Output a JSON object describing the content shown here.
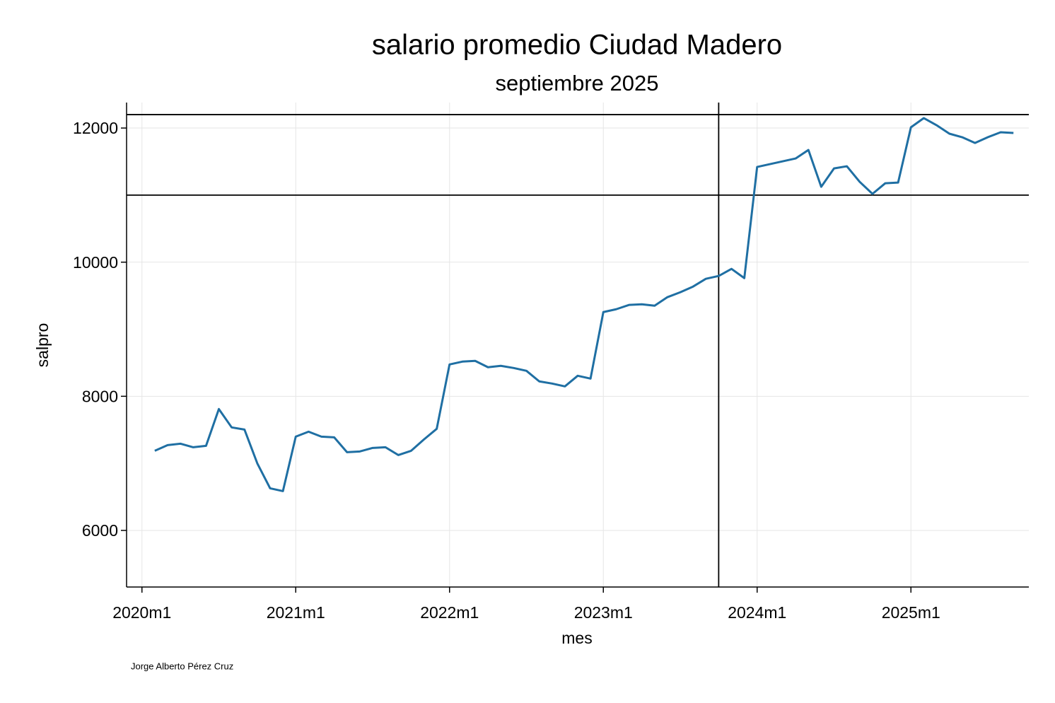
{
  "chart_data": {
    "type": "line",
    "title": "salario promedio Ciudad Madero",
    "subtitle": "septiembre 2025",
    "x_label": "mes",
    "y_label": "salpro",
    "note": "Jorge Alberto Pérez Cruz",
    "x": [
      721,
      722,
      723,
      724,
      725,
      726,
      727,
      728,
      729,
      730,
      731,
      732,
      733,
      734,
      735,
      736,
      737,
      738,
      739,
      740,
      741,
      742,
      743,
      744,
      745,
      746,
      747,
      748,
      749,
      750,
      751,
      752,
      753,
      754,
      755,
      756,
      757,
      758,
      759,
      760,
      761,
      762,
      763,
      764,
      765,
      766,
      767,
      768,
      769,
      770,
      771,
      772,
      773,
      774,
      775,
      776,
      777,
      778,
      779,
      780,
      781,
      782,
      783,
      784,
      785,
      786,
      787,
      788
    ],
    "series": [
      {
        "name": "salpro",
        "color": "#1f6fa3",
        "values": [
          7187,
          7272,
          7293,
          7240,
          7261,
          7810,
          7536,
          7504,
          7000,
          6628,
          6586,
          7398,
          7472,
          7398,
          7388,
          7166,
          7177,
          7230,
          7240,
          7124,
          7187,
          7356,
          7515,
          8475,
          8517,
          8528,
          8433,
          8454,
          8422,
          8380,
          8222,
          8190,
          8148,
          8306,
          8264,
          9256,
          9298,
          9362,
          9372,
          9351,
          9478,
          9551,
          9636,
          9752,
          9794,
          9900,
          9762,
          11420,
          11462,
          11504,
          11546,
          11673,
          11124,
          11398,
          11430,
          11198,
          11018,
          11177,
          11187,
          12011,
          12148,
          12042,
          11916,
          11863,
          11778,
          11863,
          11937,
          11926
        ]
      }
    ],
    "xlim": [
      718.8,
      789.2
    ],
    "ylim": [
      5156,
      12380
    ],
    "xticks": [
      {
        "value": 720,
        "label": "2020m1"
      },
      {
        "value": 732,
        "label": "2021m1"
      },
      {
        "value": 744,
        "label": "2022m1"
      },
      {
        "value": 756,
        "label": "2023m1"
      },
      {
        "value": 768,
        "label": "2024m1"
      },
      {
        "value": 780,
        "label": "2025m1"
      }
    ],
    "yticks": [
      6000,
      8000,
      10000,
      12000
    ],
    "hlines": [
      11000,
      12200
    ],
    "vlines": [
      765
    ],
    "grid": true
  }
}
